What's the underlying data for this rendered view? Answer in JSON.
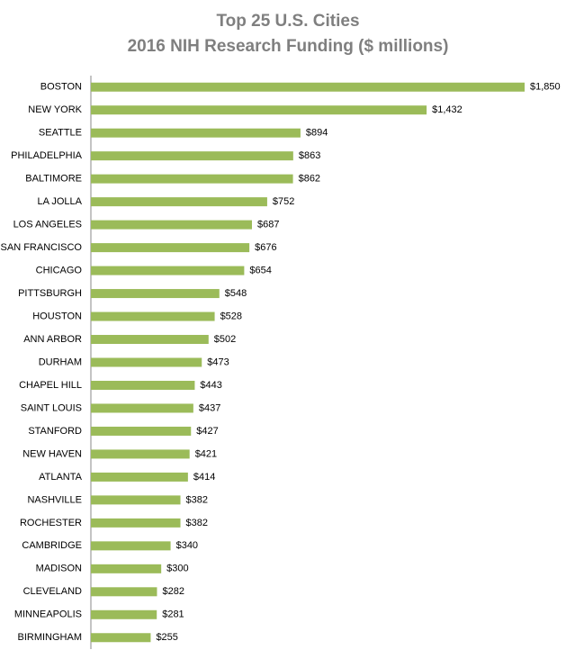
{
  "chart_data": {
    "type": "bar",
    "orientation": "horizontal",
    "title": "Top 25 U.S. Cities",
    "subtitle": "2016 NIH Research Funding ($ millions)",
    "color": "#9bbb59",
    "categories": [
      "BOSTON",
      "NEW YORK",
      "SEATTLE",
      "PHILADELPHIA",
      "BALTIMORE",
      "LA JOLLA",
      "LOS ANGELES",
      "SAN FRANCISCO",
      "CHICAGO",
      "PITTSBURGH",
      "HOUSTON",
      "ANN ARBOR",
      "DURHAM",
      "CHAPEL HILL",
      "SAINT LOUIS",
      "STANFORD",
      "NEW HAVEN",
      "ATLANTA",
      "NASHVILLE",
      "ROCHESTER",
      "CAMBRIDGE",
      "MADISON",
      "CLEVELAND",
      "MINNEAPOLIS",
      "BIRMINGHAM"
    ],
    "values": [
      1850,
      1432,
      894,
      863,
      862,
      752,
      687,
      676,
      654,
      548,
      528,
      502,
      473,
      443,
      437,
      427,
      421,
      414,
      382,
      382,
      340,
      300,
      282,
      281,
      255
    ],
    "value_labels": [
      "$1,850",
      "$1,432",
      "$894",
      "$863",
      "$862",
      "$752",
      "$687",
      "$676",
      "$654",
      "$548",
      "$528",
      "$502",
      "$473",
      "$443",
      "$437",
      "$427",
      "$421",
      "$414",
      "$382",
      "$382",
      "$340",
      "$300",
      "$282",
      "$281",
      "$255"
    ]
  }
}
